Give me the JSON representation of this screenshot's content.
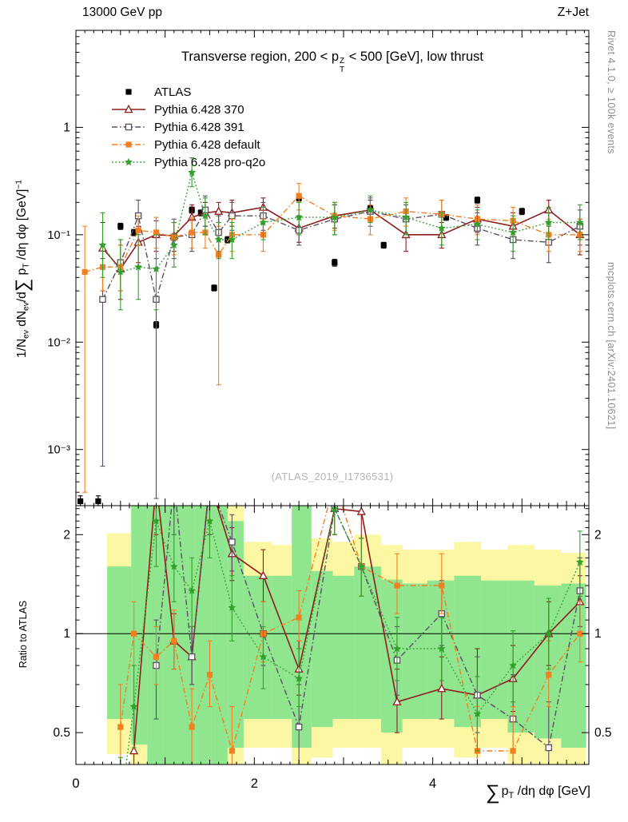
{
  "chart_data": {
    "type": "line",
    "header_left": "13000 GeV pp",
    "header_right": "Z+Jet",
    "watermark": "(ATLAS_2019_I1736531)",
    "right_label_top": "Rivet 4.1.0, ≥ 100k events",
    "right_label_bottom": "mcplots.cern.ch [arXiv:2401.10621]",
    "title": {
      "pre": "Transverse region, 200 < p",
      "sup": "Z",
      "sub": "T",
      "post": " < 500 [GeV], low thrust"
    },
    "xlabel": {
      "sum": "∑",
      "p": "p",
      "sub": "T",
      "post": " /dη dφ [GeV]"
    },
    "ylabel": {
      "parts": [
        [
          "t",
          "1/N"
        ],
        [
          "sub",
          "ev"
        ],
        [
          "t",
          " dN"
        ],
        [
          "sub",
          "ev"
        ],
        [
          "t",
          "/d"
        ],
        [
          "sum",
          "∑"
        ],
        [
          "t",
          " p"
        ],
        [
          "sub",
          "T"
        ],
        [
          "t",
          " /dη dφ  [GeV]"
        ],
        [
          "sup",
          "−1"
        ]
      ]
    },
    "ratio_ylabel": "Ratio to ATLAS",
    "x_axis": {
      "min": 0,
      "max": 5.75,
      "labeled_ticks": [
        0,
        2,
        4
      ],
      "tick_labels": [
        "0",
        "2",
        "4"
      ]
    },
    "main_axis": {
      "log": true,
      "min": 0.0003,
      "max": 8,
      "ticks": [
        {
          "v": 1,
          "label": "1"
        },
        {
          "v": 0.1,
          "label": "10⁻¹"
        },
        {
          "v": 0.01,
          "label": "10⁻²"
        },
        {
          "v": 0.001,
          "label": "10⁻³"
        }
      ]
    },
    "ratio_axis": {
      "log": true,
      "min": 0.4,
      "max": 2.45,
      "ticks": [
        {
          "v": 2,
          "label": "2"
        },
        {
          "v": 1,
          "label": "1"
        },
        {
          "v": 0.5,
          "label": "0.5"
        }
      ]
    },
    "band_colors": {
      "yellow": "#fbf7a3",
      "green": "#8fe68f"
    },
    "ratio_bands": [
      {
        "x0": 0.35,
        "x1": 0.62,
        "y": [
          0.43,
          2.02
        ],
        "g": [
          0.55,
          1.6
        ]
      },
      {
        "x0": 0.62,
        "x1": 0.8,
        "y": [
          0.4,
          2.45
        ],
        "g": [
          0.46,
          2.45
        ]
      },
      {
        "x0": 0.8,
        "x1": 0.98,
        "y": [
          0.4,
          2.45
        ],
        "g": [
          0.4,
          2.45
        ]
      },
      {
        "x0": 0.98,
        "x1": 1.16,
        "y": [
          0.4,
          2.45
        ],
        "g": [
          0.4,
          2.45
        ]
      },
      {
        "x0": 1.16,
        "x1": 1.34,
        "y": [
          0.4,
          2.45
        ],
        "g": [
          0.4,
          2.45
        ]
      },
      {
        "x0": 1.34,
        "x1": 1.52,
        "y": [
          0.4,
          2.45
        ],
        "g": [
          0.4,
          2.45
        ]
      },
      {
        "x0": 1.52,
        "x1": 1.7,
        "y": [
          0.4,
          2.45
        ],
        "g": [
          0.4,
          2.45
        ]
      },
      {
        "x0": 1.7,
        "x1": 1.88,
        "y": [
          0.4,
          2.45
        ],
        "g": [
          0.45,
          2.2
        ]
      },
      {
        "x0": 1.88,
        "x1": 2.2,
        "y": [
          0.45,
          1.9
        ],
        "g": [
          0.55,
          1.5
        ]
      },
      {
        "x0": 2.2,
        "x1": 2.42,
        "y": [
          0.45,
          1.86
        ],
        "g": [
          0.55,
          1.5
        ]
      },
      {
        "x0": 2.42,
        "x1": 2.64,
        "y": [
          0.4,
          2.45
        ],
        "g": [
          0.45,
          2.45
        ]
      },
      {
        "x0": 2.64,
        "x1": 2.88,
        "y": [
          0.42,
          1.95
        ],
        "g": [
          0.52,
          1.55
        ]
      },
      {
        "x0": 2.88,
        "x1": 3.12,
        "y": [
          0.45,
          1.9
        ],
        "g": [
          0.55,
          1.5
        ]
      },
      {
        "x0": 3.12,
        "x1": 3.42,
        "y": [
          0.45,
          2.0
        ],
        "g": [
          0.55,
          1.6
        ]
      },
      {
        "x0": 3.42,
        "x1": 3.66,
        "y": [
          0.4,
          1.86
        ],
        "g": [
          0.5,
          1.46
        ]
      },
      {
        "x0": 3.66,
        "x1": 3.94,
        "y": [
          0.45,
          1.8
        ],
        "g": [
          0.55,
          1.42
        ]
      },
      {
        "x0": 3.94,
        "x1": 4.24,
        "y": [
          0.45,
          1.8
        ],
        "g": [
          0.55,
          1.45
        ]
      },
      {
        "x0": 4.24,
        "x1": 4.54,
        "y": [
          0.42,
          1.9
        ],
        "g": [
          0.52,
          1.5
        ]
      },
      {
        "x0": 4.54,
        "x1": 4.84,
        "y": [
          0.45,
          1.8
        ],
        "g": [
          0.55,
          1.45
        ]
      },
      {
        "x0": 4.84,
        "x1": 5.14,
        "y": [
          0.4,
          1.86
        ],
        "g": [
          0.5,
          1.45
        ]
      },
      {
        "x0": 5.14,
        "x1": 5.44,
        "y": [
          0.38,
          1.8
        ],
        "g": [
          0.48,
          1.4
        ]
      },
      {
        "x0": 5.44,
        "x1": 5.72,
        "y": [
          0.35,
          1.76
        ],
        "g": [
          0.45,
          1.42
        ]
      }
    ],
    "series": [
      {
        "name": "ATLAS",
        "color": "#000000",
        "marker": "square",
        "line": "none",
        "x": [
          0.05,
          0.25,
          0.5,
          0.65,
          0.9,
          1.3,
          1.4,
          1.55,
          1.7,
          2.5,
          2.9,
          3.3,
          3.45,
          4.15,
          4.5,
          5.0
        ],
        "y": [
          0.00033,
          0.00033,
          0.12,
          0.105,
          0.0145,
          0.17,
          0.16,
          0.032,
          0.09,
          0.22,
          0.055,
          0.175,
          0.08,
          0.145,
          0.21,
          0.165
        ],
        "lo": [
          0.0003,
          0.0003,
          0.112,
          0.098,
          0.0135,
          0.159,
          0.15,
          0.03,
          0.084,
          0.206,
          0.051,
          0.164,
          0.075,
          0.136,
          0.197,
          0.154
        ],
        "hi": [
          0.00037,
          0.00037,
          0.128,
          0.112,
          0.0155,
          0.181,
          0.17,
          0.034,
          0.096,
          0.234,
          0.059,
          0.186,
          0.085,
          0.154,
          0.224,
          0.176
        ]
      },
      {
        "name": "Pythia 6.428 370",
        "color": "#8f1d1d",
        "marker": "triangle-open",
        "line": "solid",
        "x": [
          0.3,
          0.5,
          0.7,
          0.9,
          1.1,
          1.3,
          1.45,
          1.6,
          1.75,
          2.1,
          2.5,
          2.9,
          3.3,
          3.7,
          4.1,
          4.5,
          4.9,
          5.3,
          5.65
        ],
        "y": [
          0.075,
          0.048,
          0.085,
          0.1,
          0.098,
          0.145,
          0.16,
          0.165,
          0.16,
          0.18,
          0.115,
          0.15,
          0.17,
          0.1,
          0.1,
          0.14,
          0.12,
          0.17,
          0.1
        ],
        "lo": [
          0.03,
          0.025,
          0.055,
          0.07,
          0.07,
          0.11,
          0.12,
          0.13,
          0.12,
          0.145,
          0.085,
          0.115,
          0.13,
          0.07,
          0.075,
          0.105,
          0.085,
          0.13,
          0.065
        ],
        "hi": [
          0.13,
          0.08,
          0.12,
          0.135,
          0.13,
          0.19,
          0.2,
          0.2,
          0.21,
          0.22,
          0.15,
          0.19,
          0.21,
          0.135,
          0.13,
          0.18,
          0.16,
          0.21,
          0.14
        ],
        "ratio": {
          "x": [
            0.65,
            0.9,
            1.1,
            1.3,
            1.5,
            1.75,
            2.1,
            2.5,
            2.9,
            3.2,
            3.6,
            4.1,
            4.5,
            4.9,
            5.3,
            5.65
          ],
          "y": [
            0.44,
            2.9,
            0.95,
            0.85,
            2.9,
            1.75,
            1.5,
            0.78,
            2.4,
            2.35,
            0.62,
            0.68,
            0.65,
            0.73,
            1.0,
            1.25
          ],
          "lo": [
            0.3,
            2.0,
            0.78,
            0.7,
            2.0,
            1.45,
            1.25,
            0.65,
            2.0,
            1.95,
            0.5,
            0.55,
            0.4,
            0.58,
            0.8,
            1.05
          ],
          "hi": [
            0.6,
            3.5,
            1.15,
            1.05,
            3.5,
            2.1,
            1.8,
            0.95,
            2.9,
            2.8,
            0.78,
            0.85,
            0.9,
            0.92,
            1.25,
            1.5
          ]
        }
      },
      {
        "name": "Pythia 6.428 391",
        "color": "#5b4e63",
        "marker": "square-open",
        "line": "dashdot",
        "x": [
          0.3,
          0.5,
          0.7,
          0.9,
          1.1,
          1.3,
          1.45,
          1.6,
          1.75,
          2.1,
          2.5,
          2.9,
          3.3,
          3.7,
          4.1,
          4.5,
          4.9,
          5.3,
          5.65
        ],
        "y": [
          0.025,
          0.055,
          0.15,
          0.025,
          0.095,
          0.1,
          0.17,
          0.105,
          0.15,
          0.15,
          0.11,
          0.14,
          0.165,
          0.14,
          0.155,
          0.115,
          0.09,
          0.085,
          0.12
        ],
        "lo": [
          0.0007,
          0.03,
          0.1,
          0.00035,
          0.06,
          0.07,
          0.12,
          0.07,
          0.11,
          0.11,
          0.08,
          0.1,
          0.12,
          0.1,
          0.11,
          0.08,
          0.06,
          0.055,
          0.08
        ],
        "hi": [
          0.06,
          0.09,
          0.21,
          0.06,
          0.14,
          0.14,
          0.23,
          0.15,
          0.2,
          0.2,
          0.15,
          0.19,
          0.22,
          0.19,
          0.21,
          0.16,
          0.13,
          0.12,
          0.17
        ],
        "ratio": {
          "x": [
            0.9,
            1.1,
            1.3,
            1.5,
            1.75,
            2.1,
            2.5,
            2.9,
            3.2,
            3.6,
            4.1,
            4.5,
            4.9,
            5.3,
            5.65
          ],
          "y": [
            0.8,
            2.9,
            0.85,
            2.9,
            1.9,
            1.0,
            0.52,
            2.4,
            1.6,
            0.83,
            1.15,
            0.65,
            0.55,
            0.45,
            1.35
          ],
          "lo": [
            0.55,
            2.0,
            0.7,
            2.0,
            1.55,
            0.8,
            0.4,
            2.0,
            1.3,
            0.65,
            0.92,
            0.5,
            0.4,
            0.33,
            1.05
          ],
          "hi": [
            1.1,
            3.5,
            1.05,
            3.5,
            2.3,
            1.25,
            0.7,
            2.9,
            1.95,
            1.05,
            1.45,
            0.85,
            0.75,
            0.62,
            1.7
          ]
        }
      },
      {
        "name": "Pythia 6.428 default",
        "color": "#f57f20",
        "marker": "square",
        "line": "dashdot",
        "x": [
          0.1,
          0.3,
          0.5,
          0.7,
          0.9,
          1.1,
          1.3,
          1.45,
          1.6,
          1.75,
          2.1,
          2.5,
          2.9,
          3.3,
          3.7,
          4.1,
          4.5,
          4.9,
          5.3,
          5.65
        ],
        "y": [
          0.045,
          0.05,
          0.05,
          0.11,
          0.105,
          0.095,
          0.105,
          0.105,
          0.065,
          0.1,
          0.1,
          0.23,
          0.15,
          0.14,
          0.165,
          0.155,
          0.14,
          0.135,
          0.1,
          0.1
        ],
        "lo": [
          0.0004,
          0.03,
          0.03,
          0.08,
          0.075,
          0.065,
          0.075,
          0.075,
          0.004,
          0.07,
          0.07,
          0.17,
          0.11,
          0.1,
          0.12,
          0.115,
          0.1,
          0.1,
          0.07,
          0.07
        ],
        "hi": [
          0.12,
          0.08,
          0.08,
          0.15,
          0.145,
          0.13,
          0.145,
          0.145,
          0.12,
          0.14,
          0.14,
          0.3,
          0.2,
          0.19,
          0.22,
          0.21,
          0.19,
          0.18,
          0.14,
          0.14
        ],
        "ratio": {
          "x": [
            0.5,
            0.65,
            0.9,
            1.1,
            1.3,
            1.5,
            1.75,
            2.1,
            2.5,
            2.9,
            3.2,
            3.6,
            4.1,
            4.5,
            4.9,
            5.3,
            5.65
          ],
          "y": [
            0.52,
            1.0,
            0.85,
            0.95,
            0.52,
            0.75,
            0.44,
            1.0,
            1.12,
            2.9,
            1.6,
            1.4,
            1.4,
            0.44,
            0.44,
            0.75,
            1.0
          ],
          "lo": [
            0.38,
            0.8,
            0.7,
            0.78,
            0.4,
            0.6,
            0.33,
            0.82,
            0.95,
            2.0,
            1.3,
            1.15,
            1.15,
            0.33,
            0.33,
            0.6,
            0.82
          ],
          "hi": [
            0.7,
            1.25,
            1.05,
            1.18,
            0.68,
            0.95,
            0.6,
            1.25,
            1.35,
            2.9,
            1.95,
            1.75,
            1.75,
            0.6,
            0.6,
            0.95,
            1.25
          ]
        }
      },
      {
        "name": "Pythia 6.428 pro-q2o",
        "color": "#33a02c",
        "marker": "star",
        "line": "dotted",
        "x": [
          0.3,
          0.5,
          0.7,
          0.9,
          1.1,
          1.3,
          1.45,
          1.6,
          1.75,
          2.1,
          2.5,
          2.9,
          3.3,
          3.7,
          4.1,
          4.5,
          4.9,
          5.3,
          5.65
        ],
        "y": [
          0.08,
          0.045,
          0.05,
          0.048,
          0.08,
          0.38,
          0.15,
          0.09,
          0.09,
          0.13,
          0.145,
          0.145,
          0.17,
          0.145,
          0.115,
          0.125,
          0.105,
          0.13,
          0.13
        ],
        "lo": [
          0.04,
          0.02,
          0.025,
          0.02,
          0.05,
          0.28,
          0.1,
          0.06,
          0.06,
          0.09,
          0.1,
          0.1,
          0.13,
          0.1,
          0.08,
          0.09,
          0.07,
          0.09,
          0.09
        ],
        "hi": [
          0.16,
          0.09,
          0.1,
          0.1,
          0.13,
          0.52,
          0.22,
          0.13,
          0.13,
          0.18,
          0.2,
          0.2,
          0.23,
          0.2,
          0.16,
          0.17,
          0.15,
          0.18,
          0.19
        ],
        "ratio": {
          "x": [
            0.5,
            0.65,
            0.9,
            1.1,
            1.3,
            1.5,
            1.75,
            2.1,
            2.5,
            2.9,
            3.2,
            3.6,
            4.1,
            4.5,
            4.9,
            5.3,
            5.65
          ],
          "y": [
            0.3,
            0.6,
            2.2,
            1.6,
            1.35,
            2.2,
            1.2,
            0.85,
            0.73,
            2.4,
            1.6,
            0.9,
            0.9,
            0.57,
            0.8,
            1.0,
            1.65
          ],
          "lo": [
            0.22,
            0.45,
            1.6,
            1.25,
            1.05,
            1.7,
            0.95,
            0.68,
            0.6,
            2.0,
            1.3,
            0.72,
            0.72,
            0.44,
            0.62,
            0.78,
            1.3
          ],
          "hi": [
            0.42,
            0.8,
            2.9,
            2.0,
            1.7,
            2.9,
            1.5,
            1.05,
            0.9,
            2.9,
            1.95,
            1.12,
            1.12,
            0.74,
            1.02,
            1.28,
            2.05
          ]
        }
      }
    ]
  }
}
